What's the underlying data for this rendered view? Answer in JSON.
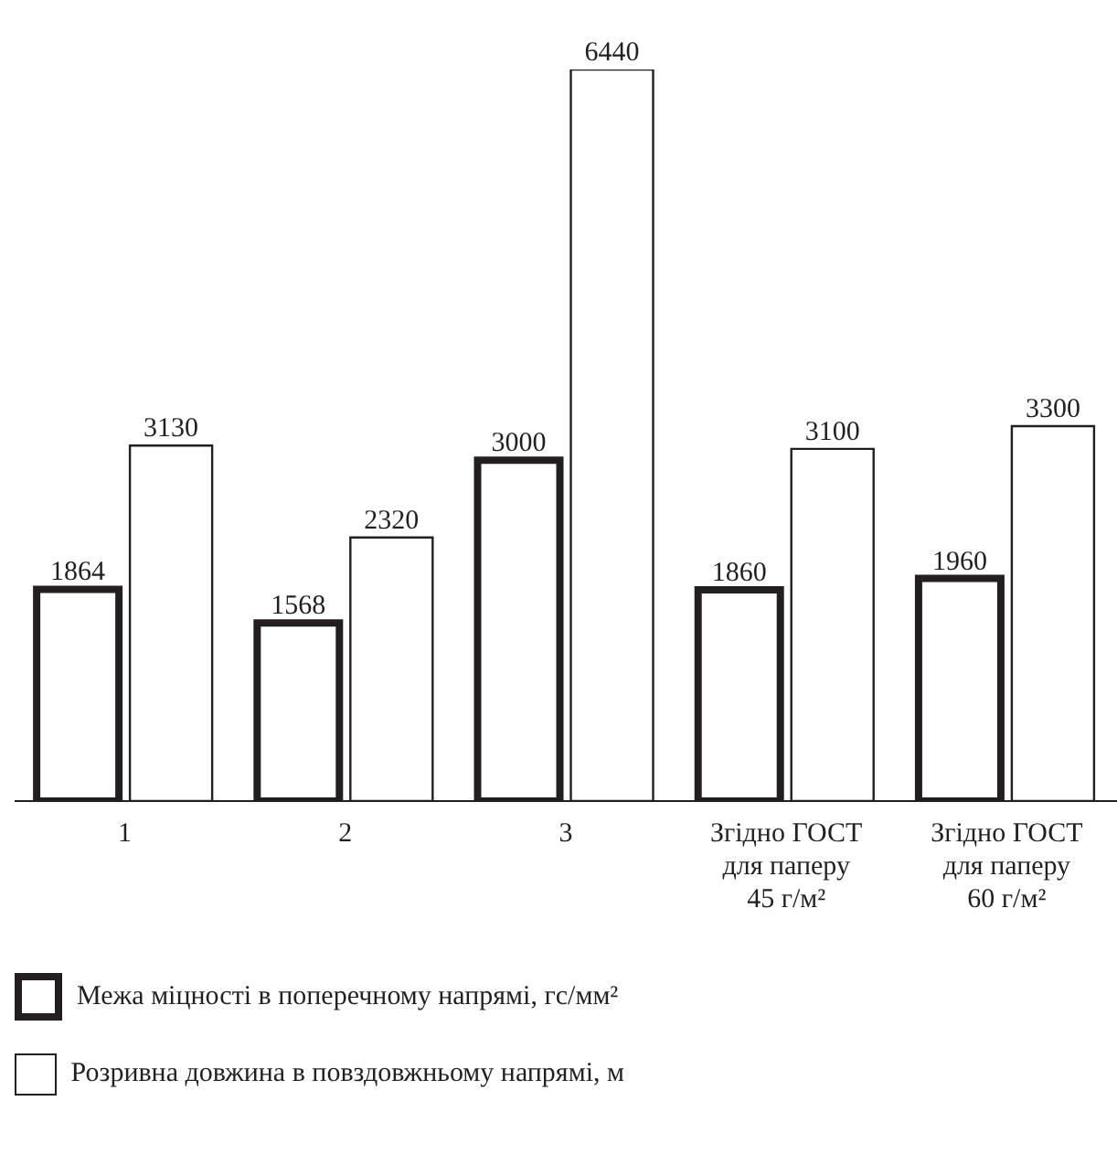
{
  "chart_data": {
    "type": "bar",
    "categories": [
      "1",
      "2",
      "3",
      "Згідно ГОСТ для паперу 45 г/м²",
      "Згідно ГОСТ для паперу 60 г/м²"
    ],
    "series": [
      {
        "name": "Межа міцності в поперечному напрямі, гс/мм²",
        "color": "#231f20",
        "values": [
          1864,
          1568,
          3000,
          1860,
          1960
        ]
      },
      {
        "name": "Розривна довжина в повздовжньому напрямі, м",
        "color": "#231f20",
        "values": [
          3130,
          2320,
          6440,
          3100,
          3300
        ]
      }
    ],
    "data_labels": true,
    "legend": "bottom",
    "grid": false
  }
}
